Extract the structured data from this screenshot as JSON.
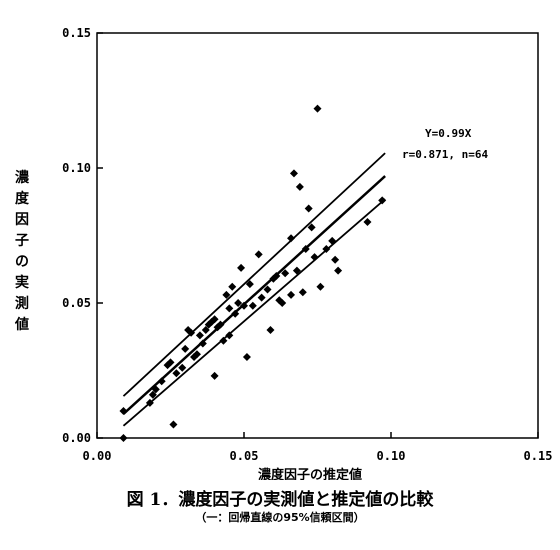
{
  "chart_data": {
    "type": "scatter",
    "title": "図 1．濃度因子の実測値と推定値の比較",
    "subtitle": "（一：回帰直線の95%信頼区間）",
    "xlabel": "濃度因子の推定値",
    "ylabel": "濃度因子の実測値",
    "xlim": [
      0,
      0.15
    ],
    "ylim": [
      0,
      0.15
    ],
    "x_ticks": [
      "0.00",
      "0.05",
      "0.10",
      "0.15"
    ],
    "y_ticks": [
      "0.00",
      "0.05",
      "0.10",
      "0.15"
    ],
    "grid": false,
    "annotation": [
      "Y=0.99X",
      "r=0.871, n=64"
    ],
    "regression": {
      "slope": 0.99
    },
    "confidence_band": {
      "x": [
        0.009,
        0.098
      ],
      "upper": [
        0.0155,
        0.1055
      ],
      "lower": [
        0.0045,
        0.0885
      ]
    },
    "points": [
      {
        "x": 0.009,
        "y": 0.0
      },
      {
        "x": 0.009,
        "y": 0.01
      },
      {
        "x": 0.018,
        "y": 0.013
      },
      {
        "x": 0.019,
        "y": 0.016
      },
      {
        "x": 0.02,
        "y": 0.018
      },
      {
        "x": 0.022,
        "y": 0.021
      },
      {
        "x": 0.024,
        "y": 0.027
      },
      {
        "x": 0.025,
        "y": 0.028
      },
      {
        "x": 0.026,
        "y": 0.005
      },
      {
        "x": 0.027,
        "y": 0.024
      },
      {
        "x": 0.029,
        "y": 0.026
      },
      {
        "x": 0.03,
        "y": 0.033
      },
      {
        "x": 0.031,
        "y": 0.04
      },
      {
        "x": 0.032,
        "y": 0.039
      },
      {
        "x": 0.033,
        "y": 0.03
      },
      {
        "x": 0.034,
        "y": 0.031
      },
      {
        "x": 0.035,
        "y": 0.038
      },
      {
        "x": 0.036,
        "y": 0.035
      },
      {
        "x": 0.037,
        "y": 0.04
      },
      {
        "x": 0.038,
        "y": 0.042
      },
      {
        "x": 0.039,
        "y": 0.043
      },
      {
        "x": 0.04,
        "y": 0.023
      },
      {
        "x": 0.04,
        "y": 0.044
      },
      {
        "x": 0.041,
        "y": 0.041
      },
      {
        "x": 0.042,
        "y": 0.042
      },
      {
        "x": 0.043,
        "y": 0.036
      },
      {
        "x": 0.044,
        "y": 0.053
      },
      {
        "x": 0.045,
        "y": 0.038
      },
      {
        "x": 0.045,
        "y": 0.048
      },
      {
        "x": 0.046,
        "y": 0.056
      },
      {
        "x": 0.047,
        "y": 0.046
      },
      {
        "x": 0.048,
        "y": 0.05
      },
      {
        "x": 0.049,
        "y": 0.063
      },
      {
        "x": 0.05,
        "y": 0.049
      },
      {
        "x": 0.051,
        "y": 0.03
      },
      {
        "x": 0.052,
        "y": 0.057
      },
      {
        "x": 0.053,
        "y": 0.049
      },
      {
        "x": 0.055,
        "y": 0.068
      },
      {
        "x": 0.056,
        "y": 0.052
      },
      {
        "x": 0.058,
        "y": 0.055
      },
      {
        "x": 0.059,
        "y": 0.04
      },
      {
        "x": 0.06,
        "y": 0.059
      },
      {
        "x": 0.061,
        "y": 0.06
      },
      {
        "x": 0.062,
        "y": 0.051
      },
      {
        "x": 0.063,
        "y": 0.05
      },
      {
        "x": 0.064,
        "y": 0.061
      },
      {
        "x": 0.066,
        "y": 0.074
      },
      {
        "x": 0.066,
        "y": 0.053
      },
      {
        "x": 0.067,
        "y": 0.098
      },
      {
        "x": 0.068,
        "y": 0.062
      },
      {
        "x": 0.069,
        "y": 0.093
      },
      {
        "x": 0.07,
        "y": 0.054
      },
      {
        "x": 0.071,
        "y": 0.07
      },
      {
        "x": 0.072,
        "y": 0.085
      },
      {
        "x": 0.073,
        "y": 0.078
      },
      {
        "x": 0.074,
        "y": 0.067
      },
      {
        "x": 0.075,
        "y": 0.122
      },
      {
        "x": 0.076,
        "y": 0.056
      },
      {
        "x": 0.078,
        "y": 0.07
      },
      {
        "x": 0.08,
        "y": 0.073
      },
      {
        "x": 0.081,
        "y": 0.066
      },
      {
        "x": 0.082,
        "y": 0.062
      },
      {
        "x": 0.092,
        "y": 0.08
      },
      {
        "x": 0.097,
        "y": 0.088
      }
    ]
  }
}
